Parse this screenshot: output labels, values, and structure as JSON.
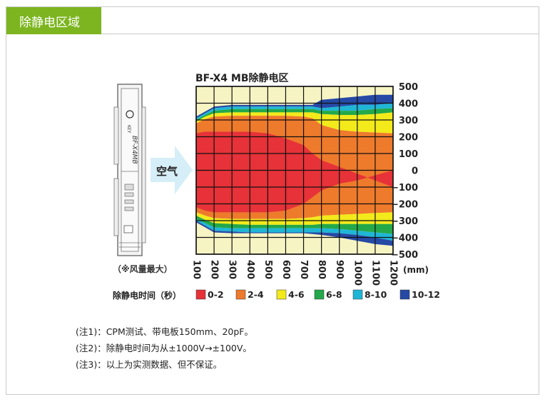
{
  "section_title": "除静电区域",
  "device": {
    "label_vertical": "BF-X4MB",
    "brand_glyph": "KEY",
    "caption": "（※风量最大）"
  },
  "air_label": "空气",
  "chart_data": {
    "type": "heatmap",
    "title": "BF-X4 MB除静电区",
    "x_unit": "(mm)",
    "x_ticks": [
      100,
      200,
      300,
      400,
      500,
      600,
      700,
      800,
      900,
      1000,
      1100,
      1200
    ],
    "y_ticks": [
      500,
      400,
      300,
      200,
      100,
      0,
      -100,
      -200,
      -300,
      -400,
      -500
    ],
    "y_tick_labels": [
      "500",
      "400",
      "300",
      "200",
      "100",
      "0",
      "−100",
      "−200",
      "−300",
      "−400",
      "−500"
    ],
    "xlim": [
      100,
      1200
    ],
    "ylim": [
      -500,
      500
    ],
    "grid": true,
    "legend_title": "除静电时间（秒）",
    "legend": [
      {
        "label": "0-2",
        "color": "#e63238"
      },
      {
        "label": "2-4",
        "color": "#ee7a2c"
      },
      {
        "label": "4-6",
        "color": "#f2ea1a"
      },
      {
        "label": "6-8",
        "color": "#23a84a"
      },
      {
        "label": "8-10",
        "color": "#1fb6d6"
      },
      {
        "label": "10-12",
        "color": "#2649a6"
      }
    ],
    "background_color": "#f7f4c4",
    "zone_boundaries": {
      "x": [
        100,
        150,
        200,
        300,
        400,
        500,
        600,
        700,
        750,
        800,
        900,
        1000,
        1100,
        1200
      ],
      "upper_outer": [
        320,
        350,
        380,
        390,
        390,
        390,
        390,
        390,
        390,
        420,
        430,
        440,
        450,
        450
      ],
      "upper_blue_to_cyan": [
        310,
        340,
        370,
        380,
        380,
        380,
        380,
        380,
        380,
        370,
        380,
        390,
        390,
        400
      ],
      "upper_cyan_to_green": [
        300,
        330,
        355,
        365,
        365,
        365,
        365,
        365,
        365,
        355,
        355,
        355,
        365,
        370
      ],
      "upper_green_to_yellow": [
        290,
        320,
        340,
        345,
        345,
        345,
        345,
        345,
        345,
        335,
        330,
        330,
        335,
        345
      ],
      "upper_yellow_to_orange": [
        280,
        305,
        320,
        325,
        325,
        325,
        325,
        320,
        310,
        270,
        240,
        230,
        225,
        220
      ],
      "upper_orange_to_red": [
        220,
        230,
        230,
        230,
        230,
        220,
        190,
        150,
        100,
        60,
        20,
        -20,
        -60,
        -100
      ],
      "lower_red_to_orange": [
        -220,
        -240,
        -250,
        -250,
        -250,
        -250,
        -240,
        -200,
        -160,
        -120,
        -80,
        -60,
        -30,
        0
      ],
      "lower_orange_to_yellow": [
        -250,
        -270,
        -285,
        -290,
        -290,
        -290,
        -290,
        -285,
        -280,
        -270,
        -265,
        -260,
        -255,
        -250
      ],
      "lower_yellow_to_green": [
        -270,
        -295,
        -315,
        -320,
        -325,
        -325,
        -325,
        -325,
        -325,
        -320,
        -320,
        -320,
        -320,
        -320
      ],
      "lower_green_to_cyan": [
        -290,
        -315,
        -340,
        -345,
        -345,
        -345,
        -345,
        -345,
        -345,
        -345,
        -350,
        -360,
        -370,
        -380
      ],
      "lower_cyan_to_blue": [
        -300,
        -330,
        -360,
        -365,
        -370,
        -370,
        -370,
        -370,
        -370,
        -370,
        -375,
        -385,
        -400,
        -420
      ],
      "lower_outer": [
        -310,
        -340,
        -370,
        -375,
        -375,
        -375,
        -375,
        -375,
        -380,
        -385,
        -400,
        -420,
        -440,
        -450
      ]
    }
  },
  "notes": [
    "(注1)：CPM测试、带电板150mm、20pF。",
    "(注2)：除静电时间为从±1000V→±100V。",
    "(注3)：以上为实测数据、但不保证。"
  ]
}
